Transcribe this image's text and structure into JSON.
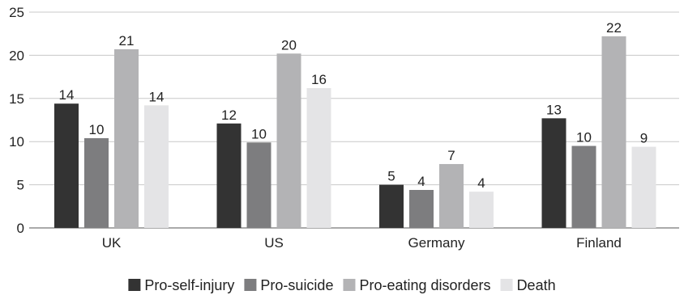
{
  "chart_data": {
    "type": "bar",
    "title": "",
    "xlabel": "",
    "ylabel": "",
    "ylim": [
      0,
      25
    ],
    "yticks": [
      "0",
      "5",
      "10",
      "15",
      "20",
      "25"
    ],
    "grid": true,
    "legend_position": "bottom",
    "categories": [
      "UK",
      "US",
      "Germany",
      "Finland"
    ],
    "series": [
      {
        "name": "Pro-self-injury",
        "color": "#333333",
        "values": [
          14.4,
          12.1,
          5.0,
          12.7
        ],
        "labels": [
          "14",
          "12",
          "5",
          "13"
        ]
      },
      {
        "name": "Pro-suicide",
        "color": "#7d7d7f",
        "values": [
          10.4,
          9.9,
          4.4,
          9.5
        ],
        "labels": [
          "10",
          "10",
          "4",
          "10"
        ]
      },
      {
        "name": "Pro-eating disorders",
        "color": "#b3b3b5",
        "values": [
          20.7,
          20.2,
          7.4,
          22.2
        ],
        "labels": [
          "21",
          "20",
          "7",
          "22"
        ]
      },
      {
        "name": "Death",
        "color": "#e4e4e6",
        "values": [
          14.2,
          16.2,
          4.2,
          9.4
        ],
        "labels": [
          "14",
          "16",
          "4",
          "9"
        ]
      }
    ]
  }
}
